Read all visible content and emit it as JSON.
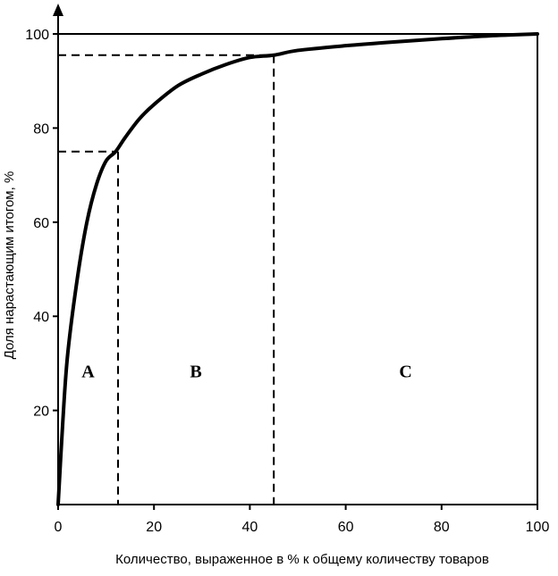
{
  "chart_data": {
    "type": "line",
    "title": "",
    "xlabel": "Количество, выраженное в % к общему количеству товаров",
    "ylabel": "Доля нарастающим итогом, %",
    "xlim": [
      0,
      100
    ],
    "ylim": [
      0,
      100
    ],
    "x_ticks": [
      "0",
      "20",
      "40",
      "60",
      "80",
      "100"
    ],
    "y_ticks": [
      "20",
      "40",
      "60",
      "80",
      "100"
    ],
    "grid": false,
    "series": [
      {
        "x": [
          0,
          1,
          2,
          4,
          6,
          8,
          10,
          12,
          14,
          17,
          20,
          25,
          30,
          35,
          40,
          45,
          50,
          60,
          70,
          80,
          90,
          100
        ],
        "y": [
          0,
          18,
          32,
          48,
          60,
          68,
          73,
          75,
          78,
          82,
          85,
          89,
          91.5,
          93.5,
          95,
          95.5,
          96.5,
          97.5,
          98.3,
          99,
          99.6,
          100
        ]
      }
    ],
    "thresholds": [
      {
        "x": 12.5,
        "y": 75
      },
      {
        "x": 45,
        "y": 95.5
      }
    ],
    "zones": [
      "A",
      "B",
      "C"
    ],
    "zone_label_y": 27,
    "colors": {
      "line": "#000000",
      "axis": "#000000"
    }
  }
}
